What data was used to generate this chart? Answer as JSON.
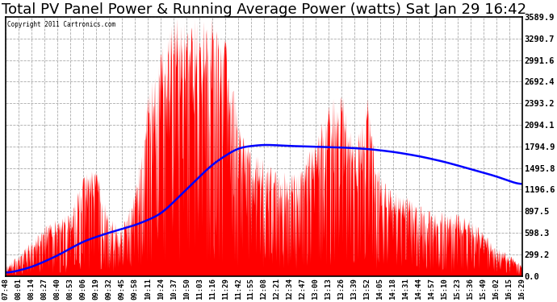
{
  "title": "Total PV Panel Power & Running Average Power (watts) Sat Jan 29 16:42",
  "copyright": "Copyright 2011 Cartronics.com",
  "ymax": 3589.9,
  "ymin": 0.0,
  "yticks": [
    0.0,
    299.2,
    598.3,
    897.5,
    1196.6,
    1495.8,
    1794.9,
    2094.1,
    2393.2,
    2692.4,
    2991.6,
    3290.7,
    3589.9
  ],
  "background_color": "#ffffff",
  "area_color": "#ff0000",
  "line_color": "#0000ff",
  "title_fontsize": 13,
  "xlabel_fontsize": 6.5,
  "ylabel_fontsize": 7.5,
  "xtick_labels": [
    "07:48",
    "08:01",
    "08:14",
    "08:27",
    "08:40",
    "08:53",
    "09:06",
    "09:19",
    "09:32",
    "09:45",
    "09:58",
    "10:11",
    "10:24",
    "10:37",
    "10:50",
    "11:03",
    "11:16",
    "11:29",
    "11:42",
    "11:55",
    "12:08",
    "12:21",
    "12:34",
    "12:47",
    "13:00",
    "13:13",
    "13:26",
    "13:39",
    "13:52",
    "14:05",
    "14:18",
    "14:31",
    "14:44",
    "14:57",
    "15:10",
    "15:23",
    "15:36",
    "15:49",
    "16:02",
    "16:15",
    "16:29"
  ],
  "ra_points_x": [
    0,
    2,
    4,
    6,
    8,
    10,
    12,
    14,
    16,
    18,
    20,
    22,
    24,
    26,
    28,
    30,
    32,
    34,
    36,
    38,
    40
  ],
  "ra_points_y": [
    30,
    120,
    280,
    480,
    600,
    700,
    850,
    1200,
    1550,
    1780,
    1820,
    1800,
    1790,
    1780,
    1760,
    1720,
    1660,
    1580,
    1480,
    1380,
    1250
  ]
}
